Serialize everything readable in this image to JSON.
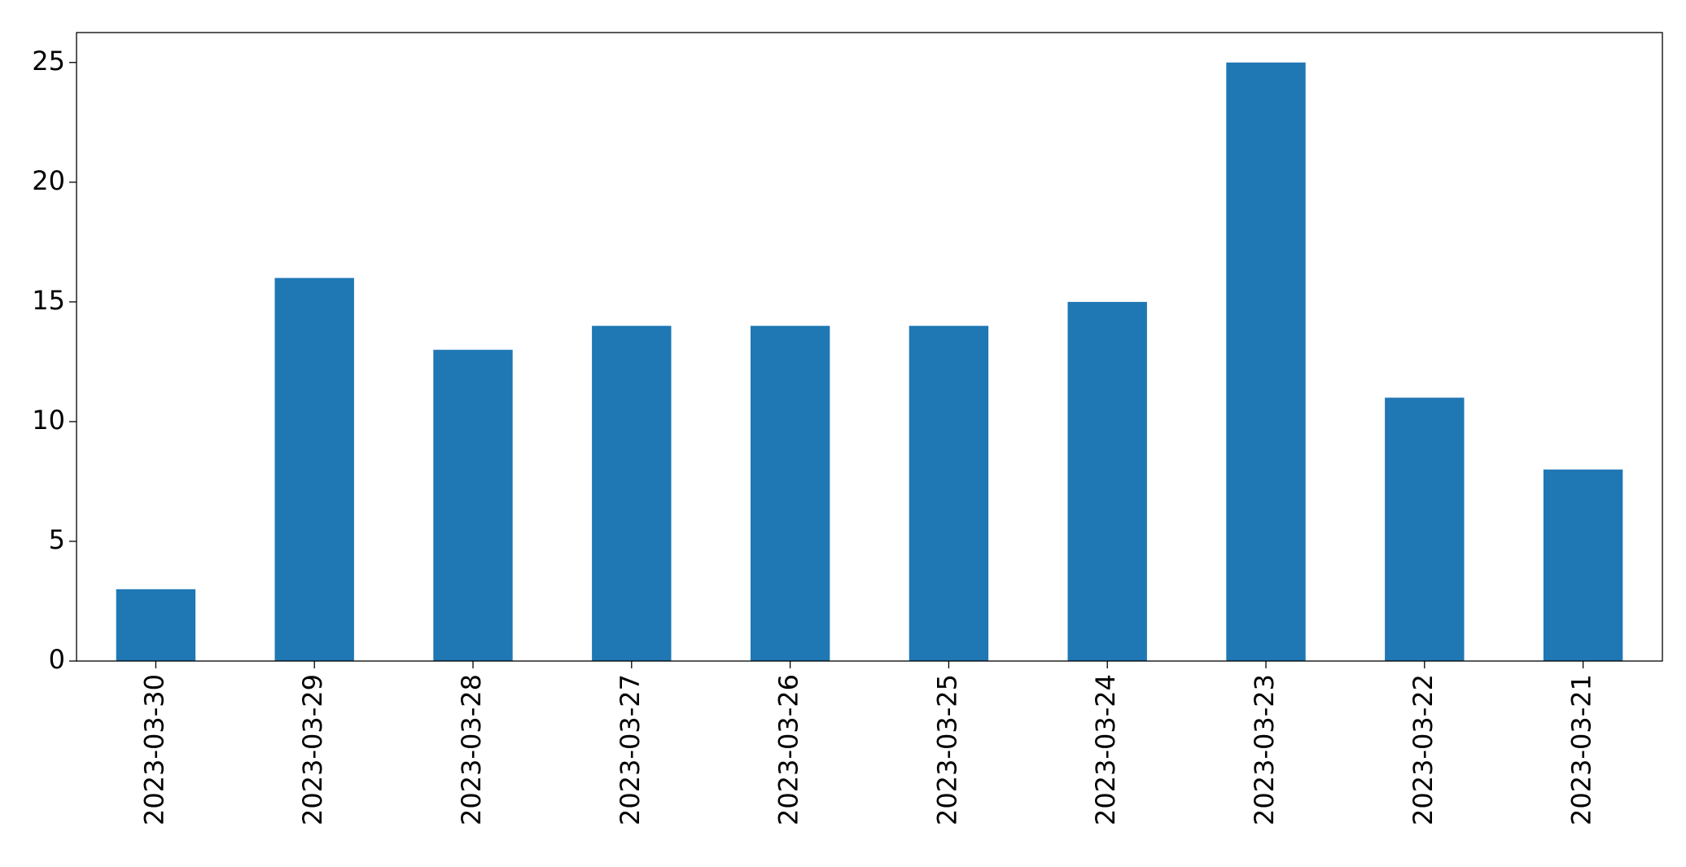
{
  "chart_data": {
    "type": "bar",
    "categories": [
      "2023-03-30",
      "2023-03-29",
      "2023-03-28",
      "2023-03-27",
      "2023-03-26",
      "2023-03-25",
      "2023-03-24",
      "2023-03-23",
      "2023-03-22",
      "2023-03-21"
    ],
    "values": [
      3,
      16,
      13,
      14,
      14,
      14,
      15,
      25,
      11,
      8
    ],
    "color": "#1f77b4",
    "ylim": [
      0,
      26.25
    ],
    "yticks": [
      0,
      5,
      10,
      15,
      20,
      25
    ],
    "grid": false
  }
}
